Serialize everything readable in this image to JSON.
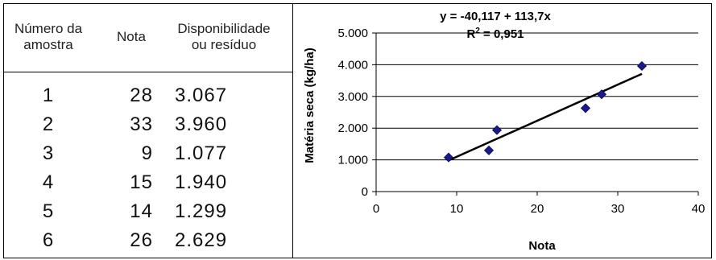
{
  "table": {
    "headers": {
      "sample": [
        "Número da",
        "amostra"
      ],
      "score": [
        "Nota"
      ],
      "value": [
        "Disponibilidade",
        "ou resíduo"
      ]
    },
    "rows": [
      {
        "sample": "1",
        "score": "28",
        "value": "3.067"
      },
      {
        "sample": "2",
        "score": "33",
        "value": "3.960"
      },
      {
        "sample": "3",
        "score": "9",
        "value": "1.077"
      },
      {
        "sample": "4",
        "score": "15",
        "value": "1.940"
      },
      {
        "sample": "5",
        "score": "14",
        "value": "1.299"
      },
      {
        "sample": "6",
        "score": "26",
        "value": "2.629"
      }
    ]
  },
  "chart_data": {
    "type": "scatter",
    "xlabel": "Nota",
    "ylabel": "Matéria seca (kg/ha)",
    "xlim": [
      0,
      40
    ],
    "ylim": [
      0,
      5000
    ],
    "xticks": [
      0,
      10,
      20,
      30,
      40
    ],
    "xtick_labels": [
      "0",
      "10",
      "20",
      "30",
      "40"
    ],
    "yticks": [
      0,
      1000,
      2000,
      3000,
      4000,
      5000
    ],
    "ytick_labels": [
      "0",
      "1.000",
      "2.000",
      "3.000",
      "4.000",
      "5.000"
    ],
    "grid": "horizontal",
    "marker_color": "#1a1a8c",
    "line_color": "#000000",
    "points": [
      {
        "x": 28,
        "y": 3067
      },
      {
        "x": 33,
        "y": 3960
      },
      {
        "x": 9,
        "y": 1077
      },
      {
        "x": 15,
        "y": 1940
      },
      {
        "x": 14,
        "y": 1299
      },
      {
        "x": 26,
        "y": 2629
      }
    ],
    "trendline": {
      "intercept": -40.117,
      "slope": 113.7,
      "x_range": [
        9,
        33
      ]
    },
    "equation": "y = -40,117 + 113,7x",
    "r2_prefix": "R",
    "r2_sup": "2",
    "r2_value": " = 0,951"
  }
}
